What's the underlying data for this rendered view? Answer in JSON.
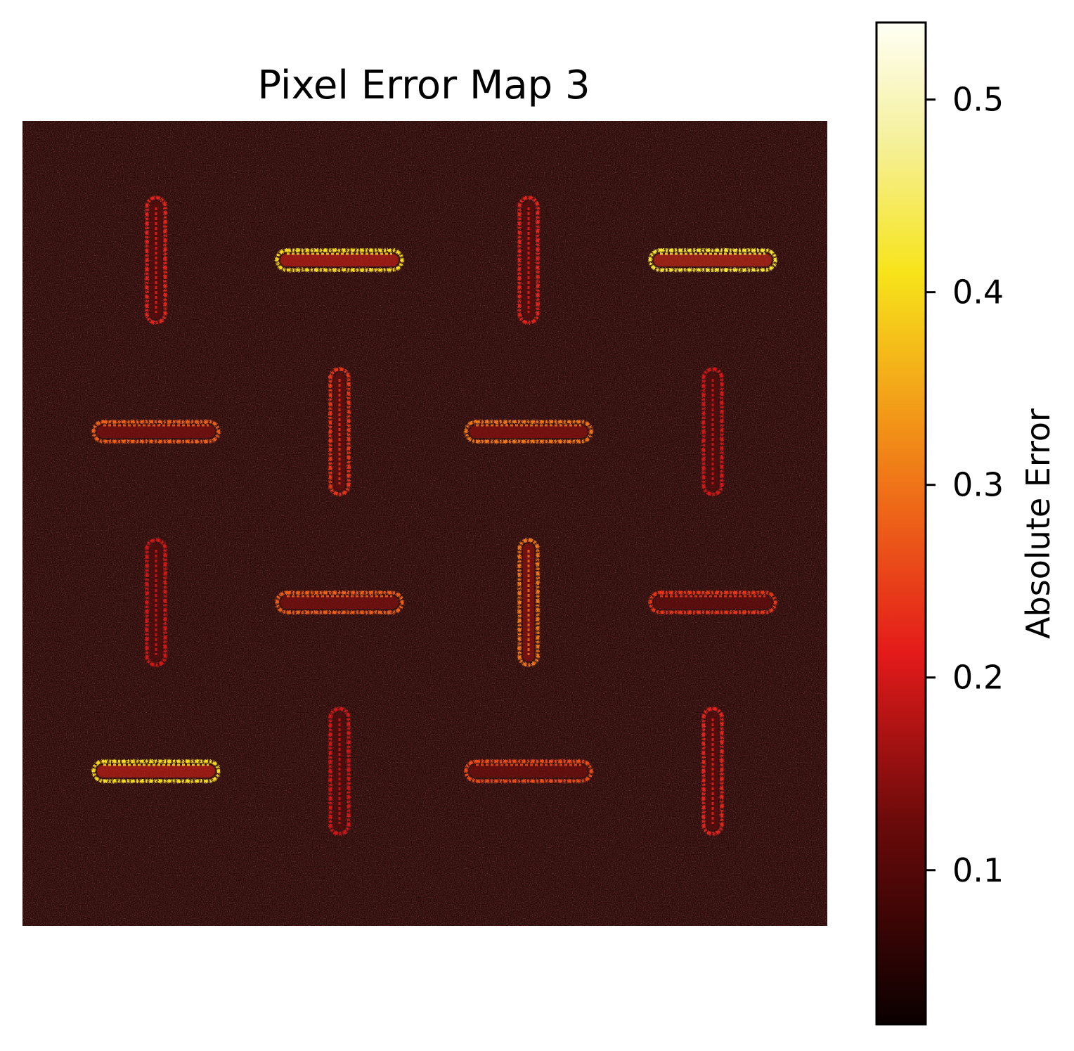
{
  "chart_data": {
    "type": "heatmap",
    "title": "Pixel Error Map 3",
    "colormap": "hot",
    "colorbar": {
      "label": "Absolute Error",
      "range": [
        0.02,
        0.54
      ],
      "ticks": [
        0.1,
        0.2,
        0.3,
        0.4,
        0.5
      ],
      "tick_labels": [
        "0.1",
        "0.2",
        "0.3",
        "0.4",
        "0.5"
      ]
    },
    "background_error": 0.05,
    "grid": "4x4 alternating vertical and horizontal rod-shaped regions of elevated error",
    "rods": [
      {
        "row": 1,
        "col": 1,
        "orientation": "vertical",
        "peak_error": 0.22
      },
      {
        "row": 1,
        "col": 2,
        "orientation": "horizontal",
        "peak_error": 0.4
      },
      {
        "row": 1,
        "col": 3,
        "orientation": "vertical",
        "peak_error": 0.22
      },
      {
        "row": 1,
        "col": 4,
        "orientation": "horizontal",
        "peak_error": 0.42
      },
      {
        "row": 2,
        "col": 1,
        "orientation": "horizontal",
        "peak_error": 0.28
      },
      {
        "row": 2,
        "col": 2,
        "orientation": "vertical",
        "peak_error": 0.24
      },
      {
        "row": 2,
        "col": 3,
        "orientation": "horizontal",
        "peak_error": 0.3
      },
      {
        "row": 2,
        "col": 4,
        "orientation": "vertical",
        "peak_error": 0.2
      },
      {
        "row": 3,
        "col": 1,
        "orientation": "vertical",
        "peak_error": 0.2
      },
      {
        "row": 3,
        "col": 2,
        "orientation": "horizontal",
        "peak_error": 0.28
      },
      {
        "row": 3,
        "col": 3,
        "orientation": "vertical",
        "peak_error": 0.3
      },
      {
        "row": 3,
        "col": 4,
        "orientation": "horizontal",
        "peak_error": 0.24
      },
      {
        "row": 4,
        "col": 1,
        "orientation": "horizontal",
        "peak_error": 0.4
      },
      {
        "row": 4,
        "col": 2,
        "orientation": "vertical",
        "peak_error": 0.2
      },
      {
        "row": 4,
        "col": 3,
        "orientation": "horizontal",
        "peak_error": 0.26
      },
      {
        "row": 4,
        "col": 4,
        "orientation": "vertical",
        "peak_error": 0.22
      }
    ]
  }
}
